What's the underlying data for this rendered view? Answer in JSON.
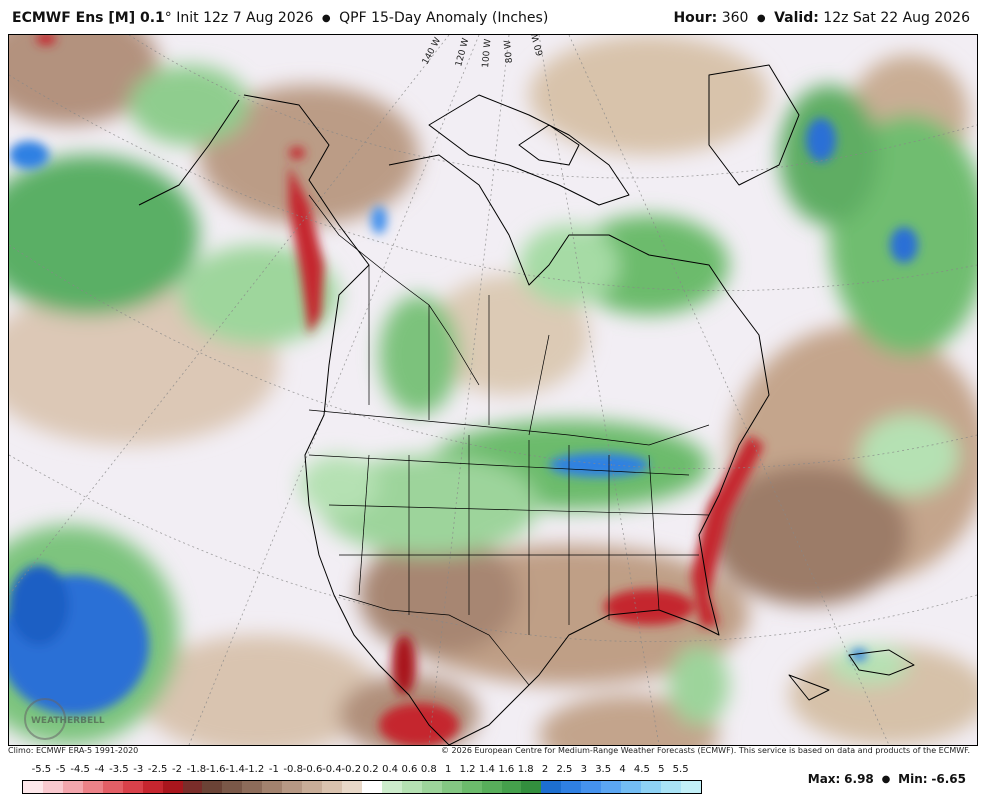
{
  "header": {
    "model": "ECMWF Ens [M] 0.1",
    "degree": "°",
    "init": "Init 12z 7 Aug 2026",
    "product": "QPF 15-Day Anomaly (Inches)",
    "hour_label": "Hour:",
    "hour": "360",
    "valid_label": "Valid:",
    "valid": "12z Sat 22 Aug 2026"
  },
  "map": {
    "longitude_labels": [
      "140 W",
      "120 W",
      "100 W",
      "80 W",
      "60 W"
    ],
    "watermark": "WEATHERBELL",
    "colors": {
      "wet_strong": "#2a6fd6",
      "wet": "#4ea85e",
      "wet_light": "#a9d9a8",
      "neutral": "#f2eef4",
      "dry_light": "#d9c2a8",
      "dry": "#8a6a58",
      "dry_strong": "#c0282e",
      "ocean_dry": "#c9ad94",
      "border": "#000000"
    }
  },
  "credits": {
    "left": "Climo: ECMWF ERA-5 1991-2020",
    "right": "© 2026 European Centre for Medium-Range Weather Forecasts (ECMWF). This service is based on data and products of the ECMWF."
  },
  "legend": {
    "labels": [
      "-5.5",
      "-5",
      "-4.5",
      "-4",
      "-3.5",
      "-3",
      "-2.5",
      "-2",
      "-1.8",
      "-1.6",
      "-1.4",
      "-1.2",
      "-1",
      "-0.8",
      "-0.6",
      "-0.4",
      "-0.2",
      "0.2",
      "0.4",
      "0.6",
      "0.8",
      "1",
      "1.2",
      "1.4",
      "1.6",
      "1.8",
      "2",
      "2.5",
      "3",
      "3.5",
      "4",
      "4.5",
      "5",
      "5.5"
    ],
    "colors": [
      "#fde7ea",
      "#f9c9cf",
      "#f3a6ad",
      "#ec8288",
      "#e35f66",
      "#d8414a",
      "#c5262f",
      "#a9161d",
      "#7a2d2a",
      "#6b4336",
      "#7a5848",
      "#8d6c5a",
      "#a2826e",
      "#b69884",
      "#c8ad98",
      "#d9c2ae",
      "#e8d8c8",
      "#ffffff",
      "#cdeccc",
      "#b5e1b3",
      "#9dd49b",
      "#84c783",
      "#6cbb6c",
      "#58ae5b",
      "#45a04c",
      "#338f3e",
      "#1d6fd0",
      "#2f80e3",
      "#4592ee",
      "#5ba6f3",
      "#73bdf4",
      "#8ed2f5",
      "#a9e3f6",
      "#c2f0f8"
    ]
  },
  "stats": {
    "max_label": "Max:",
    "max": "6.98",
    "min_label": "Min:",
    "min": "-6.65"
  }
}
